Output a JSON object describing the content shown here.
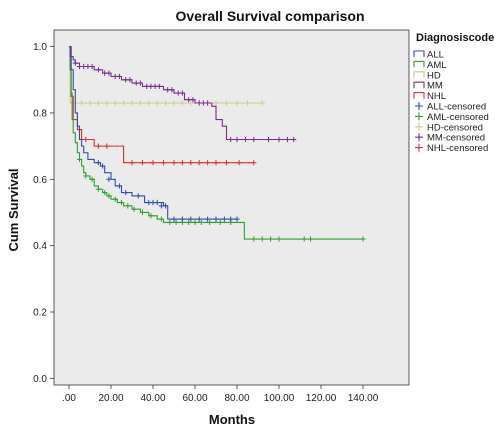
{
  "chart_data": {
    "type": "line",
    "title": "Overall Survival comparison",
    "xlabel": "Months",
    "ylabel": "Cum Survival",
    "xlim": [
      0,
      150
    ],
    "ylim": [
      -0.02,
      1.05
    ],
    "x_ticks": [
      0,
      20,
      40,
      60,
      80,
      100,
      120,
      140
    ],
    "x_tick_labels": [
      ".00",
      "20.00",
      "40.00",
      "60.00",
      "80.00",
      "100.00",
      "120.00",
      "140.00"
    ],
    "y_ticks": [
      0,
      0.2,
      0.4,
      0.6,
      0.8,
      1.0
    ],
    "y_tick_labels": [
      "0.0",
      "0.2",
      "0.4",
      "0.6",
      "0.8",
      "1.0"
    ],
    "plot_background": "#ebebeb",
    "grid": false,
    "legend": {
      "title": "Diagnosiscode",
      "placement": "right",
      "entries": [
        "ALL",
        "AML",
        "HD",
        "MM",
        "NHL",
        "ALL-censored",
        "AML-censored",
        "HD-censored",
        "MM-censored",
        "NHL-censored"
      ]
    },
    "series": [
      {
        "name": "ALL",
        "color": "#2e4ea8",
        "steps": [
          [
            0,
            1.0
          ],
          [
            0.5,
            0.97
          ],
          [
            1,
            0.93
          ],
          [
            2,
            0.87
          ],
          [
            3,
            0.8
          ],
          [
            4,
            0.76
          ],
          [
            5,
            0.72
          ],
          [
            6,
            0.7
          ],
          [
            7,
            0.68
          ],
          [
            9,
            0.66
          ],
          [
            12,
            0.65
          ],
          [
            15,
            0.64
          ],
          [
            17,
            0.62
          ],
          [
            20,
            0.6
          ],
          [
            22,
            0.58
          ],
          [
            25,
            0.56
          ],
          [
            30,
            0.55
          ],
          [
            36,
            0.53
          ],
          [
            45,
            0.52
          ],
          [
            47,
            0.48
          ],
          [
            80,
            0.48
          ]
        ],
        "censored": [
          [
            14,
            0.65
          ],
          [
            16,
            0.64
          ],
          [
            19,
            0.6
          ],
          [
            24,
            0.58
          ],
          [
            27,
            0.56
          ],
          [
            33,
            0.55
          ],
          [
            38,
            0.53
          ],
          [
            40,
            0.53
          ],
          [
            42,
            0.53
          ],
          [
            44,
            0.52
          ],
          [
            46,
            0.52
          ],
          [
            50,
            0.48
          ],
          [
            54,
            0.48
          ],
          [
            58,
            0.48
          ],
          [
            62,
            0.48
          ],
          [
            66,
            0.48
          ],
          [
            70,
            0.48
          ],
          [
            74,
            0.48
          ],
          [
            77,
            0.48
          ],
          [
            80,
            0.48
          ]
        ]
      },
      {
        "name": "AML",
        "color": "#2ea02e",
        "steps": [
          [
            0,
            1.0
          ],
          [
            0.5,
            0.93
          ],
          [
            1,
            0.86
          ],
          [
            1.5,
            0.78
          ],
          [
            2,
            0.74
          ],
          [
            3,
            0.71
          ],
          [
            4,
            0.68
          ],
          [
            5,
            0.66
          ],
          [
            6,
            0.64
          ],
          [
            7,
            0.62
          ],
          [
            8,
            0.61
          ],
          [
            10,
            0.6
          ],
          [
            12,
            0.58
          ],
          [
            14,
            0.57
          ],
          [
            16,
            0.56
          ],
          [
            18,
            0.55
          ],
          [
            20,
            0.54
          ],
          [
            23,
            0.53
          ],
          [
            26,
            0.52
          ],
          [
            30,
            0.51
          ],
          [
            34,
            0.5
          ],
          [
            38,
            0.49
          ],
          [
            42,
            0.48
          ],
          [
            45,
            0.47
          ],
          [
            83,
            0.47
          ],
          [
            83.5,
            0.42
          ],
          [
            140,
            0.42
          ]
        ],
        "censored": [
          [
            5,
            0.66
          ],
          [
            8,
            0.61
          ],
          [
            11,
            0.6
          ],
          [
            14,
            0.57
          ],
          [
            17,
            0.56
          ],
          [
            19,
            0.55
          ],
          [
            22,
            0.54
          ],
          [
            25,
            0.53
          ],
          [
            28,
            0.52
          ],
          [
            31,
            0.51
          ],
          [
            35,
            0.5
          ],
          [
            39,
            0.49
          ],
          [
            44,
            0.48
          ],
          [
            48,
            0.47
          ],
          [
            51,
            0.47
          ],
          [
            54,
            0.47
          ],
          [
            57,
            0.47
          ],
          [
            60,
            0.47
          ],
          [
            63,
            0.47
          ],
          [
            67,
            0.47
          ],
          [
            72,
            0.47
          ],
          [
            77,
            0.47
          ],
          [
            88,
            0.42
          ],
          [
            92,
            0.42
          ],
          [
            96,
            0.42
          ],
          [
            100,
            0.42
          ],
          [
            112,
            0.42
          ],
          [
            115,
            0.42
          ],
          [
            140,
            0.42
          ]
        ]
      },
      {
        "name": "HD",
        "color": "#cfc98a",
        "steps": [
          [
            0,
            1.0
          ],
          [
            0.5,
            0.83
          ],
          [
            92,
            0.83
          ]
        ],
        "censored": [
          [
            2,
            0.83
          ],
          [
            6,
            0.83
          ],
          [
            10,
            0.83
          ],
          [
            14,
            0.83
          ],
          [
            18,
            0.83
          ],
          [
            22,
            0.83
          ],
          [
            26,
            0.83
          ],
          [
            30,
            0.83
          ],
          [
            34,
            0.83
          ],
          [
            38,
            0.83
          ],
          [
            42,
            0.83
          ],
          [
            46,
            0.83
          ],
          [
            50,
            0.83
          ],
          [
            54,
            0.83
          ],
          [
            58,
            0.83
          ],
          [
            62,
            0.83
          ],
          [
            66,
            0.83
          ],
          [
            70,
            0.83
          ],
          [
            75,
            0.83
          ],
          [
            80,
            0.83
          ],
          [
            85,
            0.83
          ],
          [
            92,
            0.83
          ]
        ]
      },
      {
        "name": "MM",
        "color": "#7a2d8c",
        "steps": [
          [
            0,
            1.0
          ],
          [
            1,
            0.97
          ],
          [
            2,
            0.96
          ],
          [
            3,
            0.95
          ],
          [
            5,
            0.94
          ],
          [
            12,
            0.93
          ],
          [
            16,
            0.92
          ],
          [
            20,
            0.91
          ],
          [
            25,
            0.9
          ],
          [
            30,
            0.89
          ],
          [
            35,
            0.88
          ],
          [
            45,
            0.87
          ],
          [
            50,
            0.86
          ],
          [
            55,
            0.84
          ],
          [
            60,
            0.83
          ],
          [
            68,
            0.82
          ],
          [
            70,
            0.78
          ],
          [
            73,
            0.76
          ],
          [
            75,
            0.72
          ],
          [
            107,
            0.72
          ]
        ],
        "censored": [
          [
            3,
            0.95
          ],
          [
            5,
            0.94
          ],
          [
            7,
            0.94
          ],
          [
            9,
            0.94
          ],
          [
            11,
            0.94
          ],
          [
            14,
            0.93
          ],
          [
            17,
            0.92
          ],
          [
            19,
            0.92
          ],
          [
            22,
            0.91
          ],
          [
            24,
            0.91
          ],
          [
            27,
            0.9
          ],
          [
            29,
            0.9
          ],
          [
            32,
            0.89
          ],
          [
            34,
            0.89
          ],
          [
            37,
            0.88
          ],
          [
            39,
            0.88
          ],
          [
            41,
            0.88
          ],
          [
            43,
            0.88
          ],
          [
            47,
            0.87
          ],
          [
            49,
            0.87
          ],
          [
            52,
            0.86
          ],
          [
            54,
            0.86
          ],
          [
            57,
            0.84
          ],
          [
            59,
            0.84
          ],
          [
            62,
            0.83
          ],
          [
            64,
            0.83
          ],
          [
            66,
            0.83
          ],
          [
            77,
            0.72
          ],
          [
            80,
            0.72
          ],
          [
            84,
            0.72
          ],
          [
            88,
            0.72
          ],
          [
            95,
            0.72
          ],
          [
            100,
            0.72
          ],
          [
            104,
            0.72
          ],
          [
            107,
            0.72
          ]
        ]
      },
      {
        "name": "NHL",
        "color": "#e02e2e",
        "steps": [
          [
            0,
            1.0
          ],
          [
            1,
            0.85
          ],
          [
            2,
            0.78
          ],
          [
            4,
            0.75
          ],
          [
            6,
            0.72
          ],
          [
            12,
            0.7
          ],
          [
            24,
            0.7
          ],
          [
            26,
            0.65
          ],
          [
            88,
            0.65
          ]
        ],
        "censored": [
          [
            8,
            0.72
          ],
          [
            14,
            0.7
          ],
          [
            18,
            0.7
          ],
          [
            30,
            0.65
          ],
          [
            35,
            0.65
          ],
          [
            40,
            0.65
          ],
          [
            45,
            0.65
          ],
          [
            50,
            0.65
          ],
          [
            54,
            0.65
          ],
          [
            58,
            0.65
          ],
          [
            62,
            0.65
          ],
          [
            66,
            0.65
          ],
          [
            70,
            0.65
          ],
          [
            75,
            0.65
          ],
          [
            81,
            0.65
          ],
          [
            88,
            0.65
          ]
        ]
      }
    ]
  }
}
